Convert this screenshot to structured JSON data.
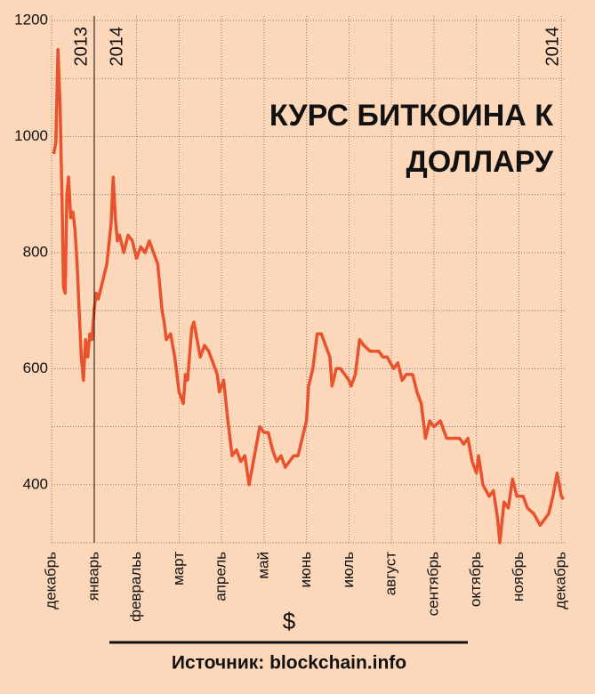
{
  "chart_data": {
    "type": "line",
    "title": [
      "КУРС БИТКОИНА К",
      "ДОЛЛАРУ"
    ],
    "annotations": [
      "2013",
      "2014",
      "2014"
    ],
    "unit": "$",
    "source": "Источник: blockchain.info",
    "xlim": [
      0,
      12.1
    ],
    "ylim": [
      300,
      1200
    ],
    "yticks": [
      400,
      600,
      800,
      1000,
      1200
    ],
    "y_minor_ticks": [
      300,
      500,
      700,
      900,
      1100
    ],
    "xticks": [
      {
        "value": 0,
        "label": "декабрь"
      },
      {
        "value": 1,
        "label": "январь"
      },
      {
        "value": 2,
        "label": "февральь"
      },
      {
        "value": 3,
        "label": "март"
      },
      {
        "value": 4,
        "label": "апрель"
      },
      {
        "value": 5,
        "label": "май"
      },
      {
        "value": 6,
        "label": "июнь"
      },
      {
        "value": 7,
        "label": "июль"
      },
      {
        "value": 8,
        "label": "август"
      },
      {
        "value": 9,
        "label": "сентябрь"
      },
      {
        "value": 10,
        "label": "октябрь"
      },
      {
        "value": 11,
        "label": "ноябрь"
      },
      {
        "value": 12,
        "label": "декабрь"
      }
    ],
    "grid": true,
    "series": [
      {
        "color": "#e8522c",
        "x": [
          0.05,
          0.1,
          0.15,
          0.2,
          0.25,
          0.28,
          0.32,
          0.36,
          0.4,
          0.45,
          0.5,
          0.55,
          0.6,
          0.65,
          0.7,
          0.75,
          0.8,
          0.85,
          0.9,
          0.95,
          1.0,
          1.05,
          1.1,
          1.2,
          1.3,
          1.4,
          1.45,
          1.5,
          1.55,
          1.6,
          1.7,
          1.8,
          1.9,
          2.0,
          2.1,
          2.2,
          2.3,
          2.4,
          2.5,
          2.6,
          2.65,
          2.7,
          2.8,
          2.9,
          3.0,
          3.1,
          3.15,
          3.2,
          3.3,
          3.35,
          3.4,
          3.5,
          3.6,
          3.7,
          3.8,
          3.9,
          3.95,
          4.05,
          4.15,
          4.25,
          4.35,
          4.45,
          4.55,
          4.65,
          4.75,
          4.85,
          4.9,
          5.0,
          5.1,
          5.2,
          5.3,
          5.4,
          5.5,
          5.6,
          5.7,
          5.8,
          5.9,
          6.0,
          6.05,
          6.15,
          6.25,
          6.35,
          6.45,
          6.55,
          6.6,
          6.7,
          6.8,
          6.9,
          7.0,
          7.05,
          7.15,
          7.25,
          7.35,
          7.5,
          7.7,
          7.8,
          7.9,
          8.05,
          8.15,
          8.25,
          8.35,
          8.5,
          8.6,
          8.7,
          8.8,
          8.9,
          9.0,
          9.15,
          9.3,
          9.45,
          9.6,
          9.7,
          9.8,
          9.9,
          10.0,
          10.05,
          10.15,
          10.3,
          10.4,
          10.5,
          10.55,
          10.65,
          10.75,
          10.85,
          10.95,
          11.1,
          11.2,
          11.35,
          11.5,
          11.6,
          11.7,
          11.8,
          11.9,
          12.0,
          12.05
        ],
        "values": [
          970,
          990,
          1150,
          1050,
          880,
          740,
          730,
          900,
          930,
          860,
          870,
          840,
          780,
          700,
          620,
          580,
          650,
          620,
          660,
          650,
          700,
          730,
          720,
          750,
          780,
          850,
          930,
          860,
          820,
          830,
          800,
          830,
          820,
          790,
          810,
          800,
          820,
          800,
          780,
          700,
          680,
          650,
          660,
          620,
          560,
          540,
          590,
          580,
          670,
          680,
          660,
          620,
          640,
          630,
          610,
          590,
          560,
          580,
          510,
          450,
          460,
          440,
          450,
          400,
          440,
          480,
          500,
          490,
          490,
          460,
          440,
          450,
          430,
          440,
          450,
          450,
          480,
          510,
          570,
          600,
          660,
          660,
          640,
          620,
          570,
          600,
          600,
          590,
          580,
          570,
          590,
          650,
          640,
          630,
          630,
          620,
          620,
          600,
          610,
          580,
          590,
          590,
          560,
          540,
          480,
          510,
          500,
          510,
          480,
          480,
          480,
          470,
          480,
          440,
          420,
          450,
          400,
          380,
          390,
          340,
          300,
          370,
          360,
          410,
          380,
          380,
          360,
          350,
          330,
          340,
          350,
          380,
          420,
          380,
          375
        ]
      }
    ]
  }
}
